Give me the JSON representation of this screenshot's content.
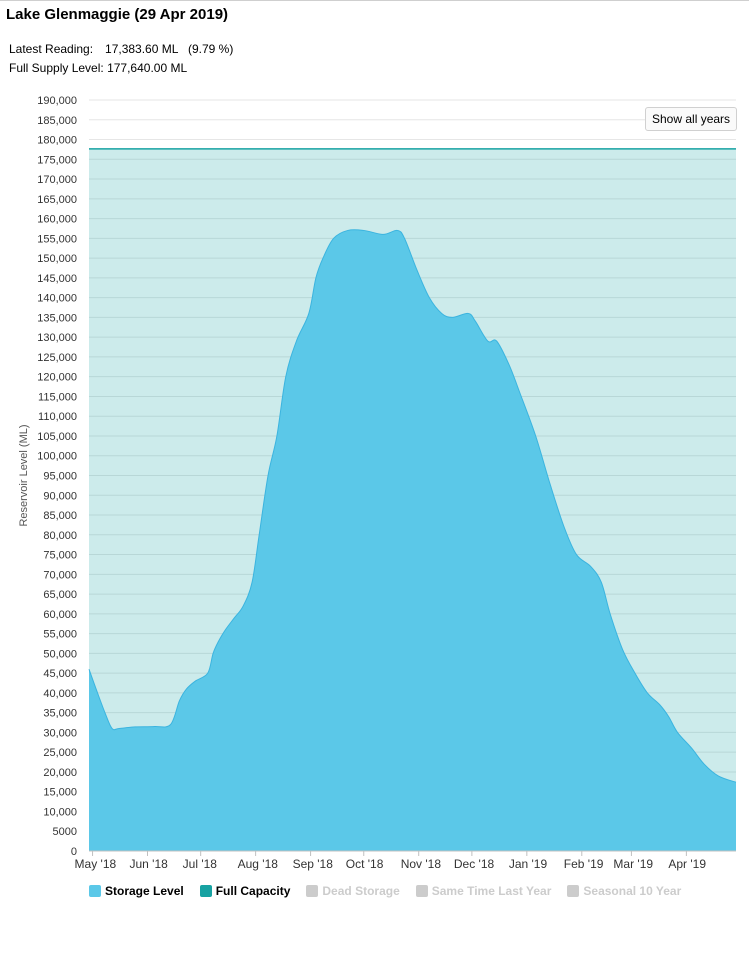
{
  "header": {
    "title": "Lake Glenmaggie (29 Apr 2019)",
    "latest_label": "Latest Reading:",
    "latest_value": "17,383.60 ML",
    "latest_pct": "(9.79 %)",
    "fsl_label": "Full Supply Level:",
    "fsl_value": "177,640.00 ML"
  },
  "controls": {
    "show_all_label": "Show all years"
  },
  "legend": [
    {
      "label": "Storage Level",
      "color": "#5bc8e8",
      "active": true
    },
    {
      "label": "Full Capacity",
      "color": "#17a2a2",
      "active": true
    },
    {
      "label": "Dead Storage",
      "color": "#cccccc",
      "active": false
    },
    {
      "label": "Same Time Last Year",
      "color": "#cccccc",
      "active": false
    },
    {
      "label": "Seasonal 10 Year",
      "color": "#cccccc",
      "active": false
    }
  ],
  "chart_data": {
    "type": "area",
    "title": "",
    "xlabel": "",
    "ylabel": "Reservoir Level (ML)",
    "ylim": [
      0,
      190000
    ],
    "y_ticks": [
      0,
      5000,
      10000,
      15000,
      20000,
      25000,
      30000,
      35000,
      40000,
      45000,
      50000,
      55000,
      60000,
      65000,
      70000,
      75000,
      80000,
      85000,
      90000,
      95000,
      100000,
      105000,
      110000,
      115000,
      120000,
      125000,
      130000,
      135000,
      140000,
      145000,
      150000,
      155000,
      160000,
      165000,
      170000,
      175000,
      180000,
      185000,
      190000
    ],
    "y_tick_labels": [
      "0",
      "5000",
      "10,000",
      "15,000",
      "20,000",
      "25,000",
      "30,000",
      "35,000",
      "40,000",
      "45,000",
      "50,000",
      "55,000",
      "60,000",
      "65,000",
      "70,000",
      "75,000",
      "80,000",
      "85,000",
      "90,000",
      "95,000",
      "100,000",
      "105,000",
      "110,000",
      "115,000",
      "120,000",
      "125,000",
      "130,000",
      "135,000",
      "140,000",
      "145,000",
      "150,000",
      "155,000",
      "160,000",
      "165,000",
      "170,000",
      "175,000",
      "180,000",
      "185,000",
      "190,000"
    ],
    "xlim": [
      "2018-04-29",
      "2019-04-29"
    ],
    "x_ticks": [
      {
        "date": "2018-05-01",
        "label": "May '18"
      },
      {
        "date": "2018-06-01",
        "label": "Jun '18"
      },
      {
        "date": "2018-07-01",
        "label": "Jul '18"
      },
      {
        "date": "2018-08-01",
        "label": "Aug '18"
      },
      {
        "date": "2018-09-01",
        "label": "Sep '18"
      },
      {
        "date": "2018-10-01",
        "label": "Oct '18"
      },
      {
        "date": "2018-11-01",
        "label": "Nov '18"
      },
      {
        "date": "2018-12-01",
        "label": "Dec '18"
      },
      {
        "date": "2019-01-01",
        "label": "Jan '19"
      },
      {
        "date": "2019-02-01",
        "label": "Feb '19"
      },
      {
        "date": "2019-03-01",
        "label": "Mar '19"
      },
      {
        "date": "2019-04-01",
        "label": "Apr '19"
      }
    ],
    "grid": true,
    "series": [
      {
        "name": "Full Capacity",
        "type": "area",
        "color": "#17a2a2",
        "points": [
          [
            "2018-04-29",
            177640
          ],
          [
            "2019-04-29",
            177640
          ]
        ]
      },
      {
        "name": "Storage Level",
        "type": "area",
        "color": "#5bc8e8",
        "points": [
          [
            "2018-04-29",
            46000
          ],
          [
            "2018-05-03",
            41000
          ],
          [
            "2018-05-08",
            35000
          ],
          [
            "2018-05-12",
            31000
          ],
          [
            "2018-05-16",
            31000
          ],
          [
            "2018-05-25",
            31400
          ],
          [
            "2018-06-05",
            31500
          ],
          [
            "2018-06-14",
            32000
          ],
          [
            "2018-06-19",
            38000
          ],
          [
            "2018-06-23",
            41000
          ],
          [
            "2018-06-28",
            43000
          ],
          [
            "2018-07-05",
            45000
          ],
          [
            "2018-07-08",
            50000
          ],
          [
            "2018-07-11",
            53000
          ],
          [
            "2018-07-15",
            56000
          ],
          [
            "2018-07-20",
            59000
          ],
          [
            "2018-07-25",
            62000
          ],
          [
            "2018-07-30",
            68000
          ],
          [
            "2018-08-03",
            80000
          ],
          [
            "2018-08-08",
            95000
          ],
          [
            "2018-08-13",
            105000
          ],
          [
            "2018-08-18",
            120000
          ],
          [
            "2018-08-24",
            129000
          ],
          [
            "2018-08-31",
            136000
          ],
          [
            "2018-09-04",
            145000
          ],
          [
            "2018-09-08",
            150000
          ],
          [
            "2018-09-14",
            155000
          ],
          [
            "2018-09-22",
            157000
          ],
          [
            "2018-10-01",
            157000
          ],
          [
            "2018-10-12",
            156000
          ],
          [
            "2018-10-20",
            157000
          ],
          [
            "2018-10-24",
            155000
          ],
          [
            "2018-10-31",
            147000
          ],
          [
            "2018-11-07",
            140000
          ],
          [
            "2018-11-14",
            136000
          ],
          [
            "2018-11-20",
            135000
          ],
          [
            "2018-11-29",
            136000
          ],
          [
            "2018-12-03",
            134000
          ],
          [
            "2018-12-10",
            129000
          ],
          [
            "2018-12-15",
            129000
          ],
          [
            "2018-12-22",
            123000
          ],
          [
            "2018-12-28",
            116000
          ],
          [
            "2019-01-06",
            105000
          ],
          [
            "2019-01-14",
            93000
          ],
          [
            "2019-01-22",
            82000
          ],
          [
            "2019-01-29",
            75000
          ],
          [
            "2019-02-06",
            72000
          ],
          [
            "2019-02-12",
            68000
          ],
          [
            "2019-02-17",
            60000
          ],
          [
            "2019-02-24",
            51000
          ],
          [
            "2019-03-03",
            45000
          ],
          [
            "2019-03-10",
            40000
          ],
          [
            "2019-03-17",
            37000
          ],
          [
            "2019-03-22",
            34000
          ],
          [
            "2019-03-27",
            30000
          ],
          [
            "2019-04-04",
            26000
          ],
          [
            "2019-04-11",
            22000
          ],
          [
            "2019-04-19",
            19000
          ],
          [
            "2019-04-29",
            17384
          ]
        ]
      }
    ]
  }
}
